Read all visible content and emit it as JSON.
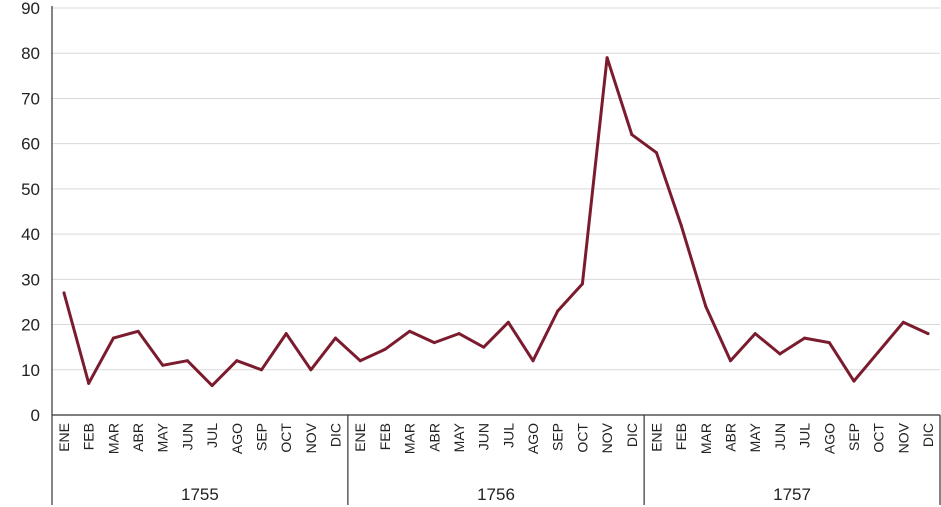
{
  "chart_data": {
    "type": "line",
    "title": "",
    "xlabel": "",
    "ylabel": "",
    "ylim": [
      0,
      90
    ],
    "yticks": [
      0,
      10,
      20,
      30,
      40,
      50,
      60,
      70,
      80,
      90
    ],
    "grid": true,
    "legend": "none",
    "line_color": "#7b1c2e",
    "groups": [
      {
        "label": "1755",
        "months": [
          "ENE",
          "FEB",
          "MAR",
          "ABR",
          "MAY",
          "JUN",
          "JUL",
          "AGO",
          "SEP",
          "OCT",
          "NOV",
          "DIC"
        ]
      },
      {
        "label": "1756",
        "months": [
          "ENE",
          "FEB",
          "MAR",
          "ABR",
          "MAY",
          "JUN",
          "JUL",
          "AGO",
          "SEP",
          "OCT",
          "NOV",
          "DIC"
        ]
      },
      {
        "label": "1757",
        "months": [
          "ENE",
          "FEB",
          "MAR",
          "ABR",
          "MAY",
          "JUN",
          "JUL",
          "AGO",
          "SEP",
          "OCT",
          "NOV",
          "DIC"
        ]
      }
    ],
    "series": [
      {
        "values": [
          27,
          7,
          17,
          18.5,
          11,
          12,
          6.5,
          12,
          10,
          18,
          10,
          17,
          12,
          14.5,
          18.5,
          16,
          18,
          15,
          20.5,
          12,
          23,
          29,
          79,
          62,
          58,
          42,
          24,
          12,
          18,
          13.5,
          17,
          16,
          7.5,
          14,
          20.5,
          18
        ]
      }
    ]
  }
}
